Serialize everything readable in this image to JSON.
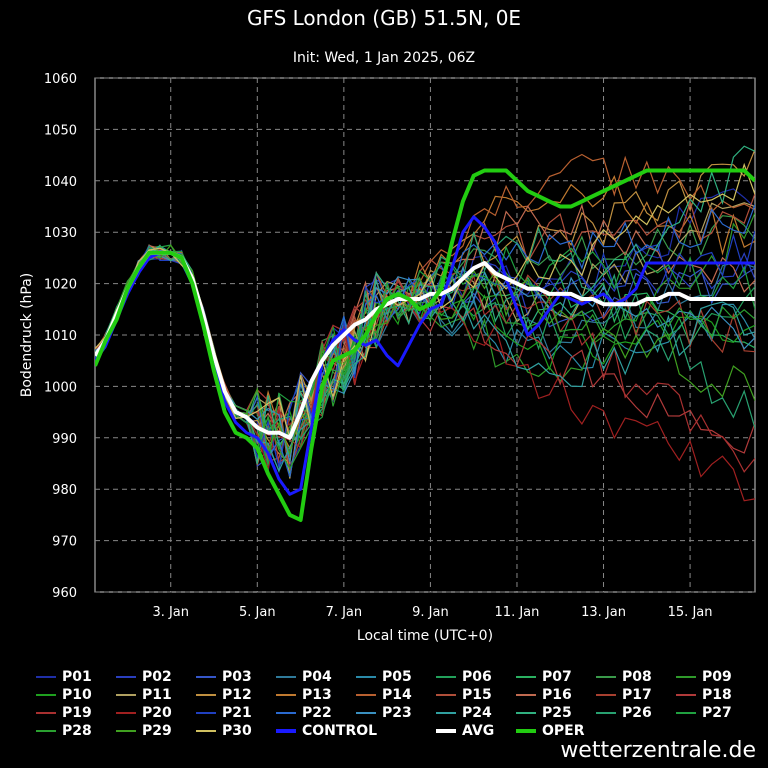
{
  "title": "GFS London (GB) 51.5N, 0E",
  "subtitle": "Init: Wed, 1 Jan 2025, 06Z",
  "brand": "wetterzentrale.de",
  "chart_data": {
    "type": "line",
    "title": "GFS London (GB) 51.5N, 0E",
    "subtitle": "Init: Wed, 1 Jan 2025, 06Z",
    "xlabel": "Local time (UTC+0)",
    "ylabel": "Bodendruck (hPa)",
    "xlim": [
      1.25,
      16.5
    ],
    "ylim": [
      960,
      1060
    ],
    "grid": true,
    "x_ticks": [
      3,
      5,
      7,
      9,
      11,
      13,
      15
    ],
    "x_tick_labels": [
      "3. Jan",
      "5. Jan",
      "7. Jan",
      "9. Jan",
      "11. Jan",
      "13. Jan",
      "15. Jan"
    ],
    "y_ticks": [
      960,
      970,
      980,
      990,
      1000,
      1010,
      1020,
      1030,
      1040,
      1050,
      1060
    ],
    "x": [
      1.25,
      1.5,
      1.75,
      2.0,
      2.25,
      2.5,
      2.75,
      3.0,
      3.25,
      3.5,
      3.75,
      4.0,
      4.25,
      4.5,
      4.75,
      5.0,
      5.25,
      5.5,
      5.75,
      6.0,
      6.25,
      6.5,
      6.75,
      7.0,
      7.25,
      7.5,
      7.75,
      8.0,
      8.25,
      8.5,
      8.75,
      9.0,
      9.25,
      9.5,
      9.75,
      10.0,
      10.25,
      10.5,
      10.75,
      11.0,
      11.25,
      11.5,
      11.75,
      12.0,
      12.25,
      12.5,
      12.75,
      13.0,
      13.25,
      13.5,
      13.75,
      14.0,
      14.25,
      14.5,
      14.75,
      15.0,
      15.25,
      15.5,
      15.75,
      16.0,
      16.25,
      16.5
    ],
    "series": [
      {
        "name": "OPER",
        "color": "#22cc11",
        "width": 4,
        "values": [
          1004,
          1009,
          1013,
          1019,
          1023,
          1026,
          1026,
          1026,
          1025,
          1020,
          1012,
          1003,
          995,
          991,
          990,
          988,
          983,
          979,
          975,
          974,
          988,
          1000,
          1005,
          1006,
          1007,
          1010,
          1014,
          1017,
          1018,
          1017,
          1015,
          1016,
          1019,
          1028,
          1036,
          1041,
          1042,
          1042,
          1042,
          1040,
          1038,
          1037,
          1036,
          1035,
          1035,
          1036,
          1037,
          1038,
          1039,
          1040,
          1041,
          1042,
          1042,
          1042,
          1042,
          1042,
          1042,
          1042,
          1042,
          1042,
          1042,
          1040
        ]
      },
      {
        "name": "AVG",
        "color": "#ffffff",
        "width": 4,
        "values": [
          1006,
          1009,
          1014,
          1019,
          1023,
          1026,
          1026,
          1026,
          1025,
          1021,
          1014,
          1006,
          999,
          995,
          994,
          992,
          991,
          991,
          990,
          995,
          1001,
          1005,
          1008,
          1010,
          1012,
          1013,
          1015,
          1016,
          1017,
          1017,
          1017,
          1018,
          1018,
          1019,
          1021,
          1023,
          1024,
          1022,
          1021,
          1020,
          1019,
          1019,
          1018,
          1018,
          1018,
          1017,
          1017,
          1016,
          1016,
          1016,
          1016,
          1017,
          1017,
          1018,
          1018,
          1017,
          1017,
          1017,
          1017,
          1017,
          1017,
          1017
        ]
      },
      {
        "name": "CONTROL",
        "color": "#1a1aff",
        "width": 3,
        "values": [
          1005,
          1008,
          1013,
          1018,
          1022,
          1025,
          1026,
          1026,
          1025,
          1021,
          1013,
          1004,
          997,
          993,
          991,
          990,
          987,
          982,
          979,
          980,
          992,
          1005,
          1009,
          1011,
          1009,
          1008,
          1009,
          1006,
          1004,
          1008,
          1012,
          1015,
          1016,
          1023,
          1030,
          1033,
          1031,
          1028,
          1021,
          1015,
          1010,
          1012,
          1015,
          1018,
          1017,
          1016,
          1017,
          1018,
          1016,
          1017,
          1019,
          1024,
          1024,
          1024,
          1024,
          1024,
          1024,
          1024,
          1024,
          1024,
          1024,
          1024
        ]
      }
    ],
    "members": [
      "P01",
      "P02",
      "P03",
      "P04",
      "P05",
      "P06",
      "P07",
      "P08",
      "P09",
      "P10",
      "P11",
      "P12",
      "P13",
      "P14",
      "P15",
      "P16",
      "P17",
      "P18",
      "P19",
      "P20",
      "P21",
      "P22",
      "P23",
      "P24",
      "P25",
      "P26",
      "P27",
      "P28",
      "P29",
      "P30"
    ],
    "member_colors": [
      "#1f2fa8",
      "#2a3fbf",
      "#3556c9",
      "#2f7a9a",
      "#2a8aa8",
      "#22a05a",
      "#2ab060",
      "#3a9a4a",
      "#2f9a2a",
      "#1fa01f",
      "#b0a060",
      "#c09040",
      "#c07a30",
      "#b86030",
      "#b04f3a",
      "#c06a50",
      "#a84030",
      "#b03a3a",
      "#a83030",
      "#a02020",
      "#2040c0",
      "#2a6ad0",
      "#3a90c0",
      "#30a0a0",
      "#30b080",
      "#28a070",
      "#20a040",
      "#2aa030",
      "#40a020",
      "#d0c060"
    ],
    "member_ends": [
      1036,
      1025,
      1021,
      1024,
      1013,
      1017,
      1008,
      1032,
      1031,
      1012,
      1038,
      1043,
      1028,
      1037,
      1034,
      1020,
      1009,
      989,
      985,
      980,
      1026,
      1034,
      1011,
      1015,
      1044,
      993,
      1019,
      1011,
      998,
      1041
    ],
    "member_mids": [
      1022,
      1018,
      1016,
      1008,
      1004,
      1010,
      1020,
      1025,
      1000,
      1006,
      1015,
      1028,
      1040,
      1042,
      1030,
      1033,
      1018,
      1005,
      1012,
      1000,
      1020,
      1026,
      1018,
      1002,
      1012,
      1028,
      1024,
      1015,
      1016,
      1022
    ]
  },
  "legend": [
    {
      "label": "P01",
      "color": "#1f2fa8"
    },
    {
      "label": "P02",
      "color": "#2a3fbf"
    },
    {
      "label": "P03",
      "color": "#3556c9"
    },
    {
      "label": "P04",
      "color": "#2f7a9a"
    },
    {
      "label": "P05",
      "color": "#2a8aa8"
    },
    {
      "label": "P06",
      "color": "#22a05a"
    },
    {
      "label": "P07",
      "color": "#2ab060"
    },
    {
      "label": "P08",
      "color": "#3a9a4a"
    },
    {
      "label": "P09",
      "color": "#2f9a2a"
    },
    {
      "label": "P10",
      "color": "#1fa01f"
    },
    {
      "label": "P11",
      "color": "#b0a060"
    },
    {
      "label": "P12",
      "color": "#c09040"
    },
    {
      "label": "P13",
      "color": "#c07a30"
    },
    {
      "label": "P14",
      "color": "#b86030"
    },
    {
      "label": "P15",
      "color": "#b04f3a"
    },
    {
      "label": "P16",
      "color": "#c06a50"
    },
    {
      "label": "P17",
      "color": "#a84030"
    },
    {
      "label": "P18",
      "color": "#b03a3a"
    },
    {
      "label": "P19",
      "color": "#a83030"
    },
    {
      "label": "P20",
      "color": "#a02020"
    },
    {
      "label": "P21",
      "color": "#2040c0"
    },
    {
      "label": "P22",
      "color": "#2a6ad0"
    },
    {
      "label": "P23",
      "color": "#3a90c0"
    },
    {
      "label": "P24",
      "color": "#30a0a0"
    },
    {
      "label": "P25",
      "color": "#30b080"
    },
    {
      "label": "P26",
      "color": "#28a070"
    },
    {
      "label": "P27",
      "color": "#20a040"
    },
    {
      "label": "P28",
      "color": "#2aa030"
    },
    {
      "label": "P29",
      "color": "#40a020"
    },
    {
      "label": "P30",
      "color": "#d0c060"
    },
    {
      "label": "CONTROL",
      "color": "#1a1aff",
      "thick": true
    },
    {
      "label": "AVG",
      "color": "#ffffff",
      "thick": true
    },
    {
      "label": "OPER",
      "color": "#22cc11",
      "thick": true
    }
  ]
}
